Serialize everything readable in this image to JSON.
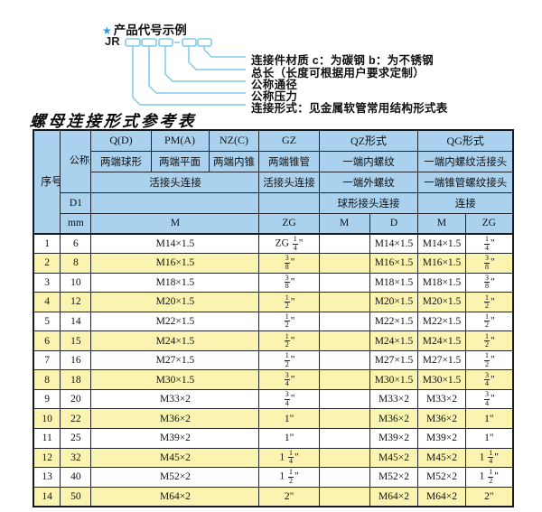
{
  "colors": {
    "header_bg": "#aad2ef",
    "stripe_bg": "#faf4b0",
    "border": "#20242c",
    "diagram_line_blue": "#7ecbe8",
    "star_blue": "#2e9bd6"
  },
  "diagram": {
    "star": "★",
    "title": "产品代号示例",
    "prefix": "JR",
    "labels": [
      "连接件材质  c：为碳钢  b：为不锈钢",
      "总长（长度可根据用户要求定制）",
      "公称通径",
      "公称压力",
      "连接形式：见金属软管常用结构形式表"
    ]
  },
  "table_title": "螺母连接形式参考表",
  "table": {
    "header": {
      "xh": "序号",
      "gctj": "公称通径",
      "d1": "D1",
      "mm": "mm",
      "row1": [
        "Q(D)",
        "PM(A)",
        "NZ(C)",
        "GZ",
        "QZ形式",
        "QG形式"
      ],
      "row2": [
        "两端球形",
        "两端平面",
        "两端内锥",
        "两端锥管",
        "一端内螺纹",
        "一端内螺纹活接头"
      ],
      "row3": [
        "活接头连接",
        "活接头连接",
        "一端外螺纹",
        "一端锥管螺纹接头"
      ],
      "row4": [
        "球形接头连接",
        "连接"
      ],
      "row5": [
        "M",
        "ZG",
        "M",
        "D",
        "M",
        "ZG"
      ]
    },
    "rows": [
      [
        "1",
        "6",
        "M14×1.5",
        "ZG 1/4\"",
        "",
        "M14×1.5",
        "M14×1.5",
        "1/4\""
      ],
      [
        "2",
        "8",
        "M16×1.5",
        "3/8\"",
        "",
        "M16×1.5",
        "M16×1.5",
        "3/8\""
      ],
      [
        "3",
        "10",
        "M18×1.5",
        "3/8\"",
        "",
        "M18×1.5",
        "M18×1.5",
        "3/8\""
      ],
      [
        "4",
        "12",
        "M20×1.5",
        "1/2\"",
        "",
        "M20×1.5",
        "M20×1.5",
        "1/2\""
      ],
      [
        "5",
        "14",
        "M22×1.5",
        "1/2\"",
        "",
        "M22×1.5",
        "M22×1.5",
        "1/2\""
      ],
      [
        "6",
        "15",
        "M24×1.5",
        "1/2\"",
        "",
        "M24×1.5",
        "M24×1.5",
        "1/2\""
      ],
      [
        "7",
        "16",
        "M27×1.5",
        "1/2\"",
        "",
        "M27×1.5",
        "M27×1.5",
        "1/2\""
      ],
      [
        "8",
        "18",
        "M30×1.5",
        "3/4\"",
        "",
        "M30×1.5",
        "M30×1.5",
        "3/4\""
      ],
      [
        "9",
        "20",
        "M33×2",
        "3/4\"",
        "",
        "M33×2",
        "M33×2",
        "3/4\""
      ],
      [
        "10",
        "22",
        "M36×2",
        "1\"",
        "",
        "M36×2",
        "M36×2",
        "1\""
      ],
      [
        "11",
        "25",
        "M39×2",
        "1\"",
        "",
        "M39×2",
        "M39×2",
        "1\""
      ],
      [
        "12",
        "32",
        "M45×2",
        "1 1/4\"",
        "",
        "M45×2",
        "M45×2",
        "1 1/4\""
      ],
      [
        "13",
        "40",
        "M52×2",
        "1 1/2\"",
        "",
        "M52×2",
        "M52×2",
        "1 1/2\""
      ],
      [
        "14",
        "50",
        "M64×2",
        "2\"",
        "",
        "M64×2",
        "M64×2",
        "2\""
      ]
    ]
  }
}
